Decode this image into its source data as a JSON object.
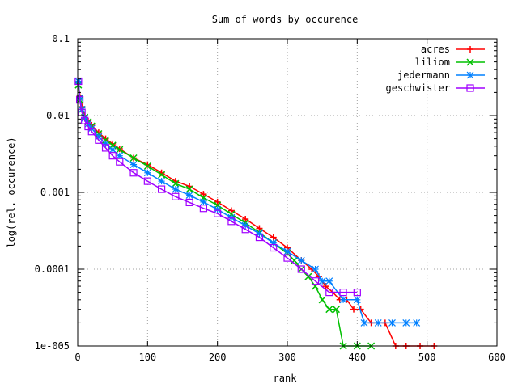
{
  "chart_data": {
    "type": "line",
    "title": "Sum of words by occurence",
    "xlabel": "rank",
    "ylabel": "log(rel. occurence)",
    "xlim": [
      0,
      600
    ],
    "ylim": [
      1e-05,
      0.1
    ],
    "yscale": "log",
    "grid": true,
    "legend_position": "top-right",
    "x_ticks": [
      0,
      100,
      200,
      300,
      400,
      500,
      600
    ],
    "x_tick_labels": [
      "0",
      "100",
      "200",
      "300",
      "400",
      "500",
      "600"
    ],
    "y_ticks": [
      1e-05,
      0.0001,
      0.001,
      0.01,
      0.1
    ],
    "y_tick_labels": [
      "1e-005",
      "0.0001",
      "0.001",
      "0.01",
      "0.1"
    ],
    "series": [
      {
        "name": "acres",
        "color": "#ff0000",
        "marker": "plus",
        "x": [
          1,
          3,
          6,
          10,
          15,
          20,
          30,
          40,
          50,
          60,
          80,
          100,
          120,
          140,
          160,
          180,
          200,
          220,
          240,
          260,
          280,
          300,
          320,
          335,
          345,
          355,
          365,
          375,
          385,
          395,
          405,
          420,
          440,
          455,
          470,
          490,
          510
        ],
        "y": [
          0.027,
          0.018,
          0.013,
          0.01,
          0.0085,
          0.0075,
          0.006,
          0.005,
          0.0043,
          0.0037,
          0.0028,
          0.0023,
          0.0018,
          0.0014,
          0.0012,
          0.00095,
          0.00075,
          0.00058,
          0.00045,
          0.00034,
          0.00026,
          0.00019,
          0.00013,
          0.0001,
          8e-05,
          6e-05,
          5e-05,
          4e-05,
          4e-05,
          3e-05,
          3e-05,
          2e-05,
          2e-05,
          1e-05,
          1e-05,
          1e-05,
          1e-05
        ]
      },
      {
        "name": "liliom",
        "color": "#00c000",
        "marker": "cross",
        "x": [
          1,
          3,
          6,
          10,
          15,
          20,
          30,
          40,
          50,
          60,
          80,
          100,
          120,
          140,
          160,
          180,
          200,
          220,
          240,
          260,
          280,
          300,
          310,
          320,
          330,
          340,
          350,
          360,
          370,
          380,
          400,
          420
        ],
        "y": [
          0.025,
          0.016,
          0.012,
          0.0095,
          0.0083,
          0.0073,
          0.0058,
          0.0048,
          0.0041,
          0.0036,
          0.0028,
          0.0022,
          0.0017,
          0.0013,
          0.0011,
          0.00085,
          0.00068,
          0.00052,
          0.0004,
          0.0003,
          0.00022,
          0.00016,
          0.00013,
          0.0001,
          8e-05,
          6e-05,
          4e-05,
          3e-05,
          3e-05,
          1e-05,
          1e-05,
          1e-05
        ]
      },
      {
        "name": "jedermann",
        "color": "#0080ff",
        "marker": "star",
        "x": [
          1,
          3,
          6,
          10,
          15,
          20,
          30,
          40,
          50,
          60,
          80,
          100,
          120,
          140,
          160,
          180,
          200,
          220,
          240,
          260,
          280,
          300,
          320,
          340,
          350,
          360,
          380,
          400,
          410,
          430,
          450,
          470,
          485
        ],
        "y": [
          0.028,
          0.017,
          0.012,
          0.0092,
          0.0078,
          0.0068,
          0.0053,
          0.0043,
          0.0036,
          0.003,
          0.0023,
          0.0018,
          0.0014,
          0.0011,
          0.00092,
          0.00075,
          0.0006,
          0.00047,
          0.00037,
          0.00029,
          0.00022,
          0.00017,
          0.00013,
          0.0001,
          7e-05,
          7e-05,
          4e-05,
          4e-05,
          2e-05,
          2e-05,
          2e-05,
          2e-05,
          2e-05
        ]
      },
      {
        "name": "geschwister",
        "color": "#a000ff",
        "marker": "box",
        "x": [
          1,
          3,
          6,
          10,
          15,
          20,
          30,
          40,
          50,
          60,
          80,
          100,
          120,
          140,
          160,
          180,
          200,
          220,
          240,
          260,
          280,
          300,
          320,
          340,
          360,
          380,
          400
        ],
        "y": [
          0.028,
          0.016,
          0.011,
          0.0086,
          0.0072,
          0.0062,
          0.0048,
          0.0038,
          0.003,
          0.0025,
          0.0018,
          0.0014,
          0.0011,
          0.00088,
          0.00074,
          0.00062,
          0.00053,
          0.00042,
          0.00033,
          0.00026,
          0.00019,
          0.00014,
          0.0001,
          7e-05,
          5e-05,
          5e-05,
          5e-05
        ]
      }
    ]
  }
}
